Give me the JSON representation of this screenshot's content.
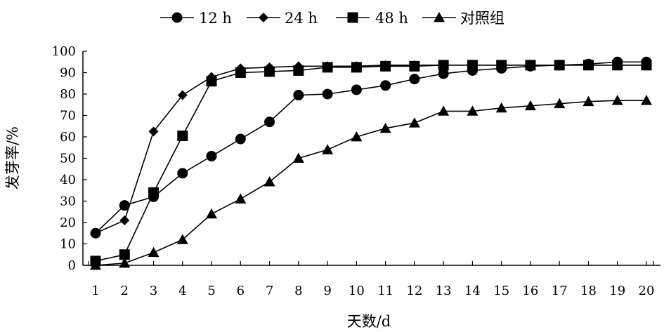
{
  "chart_data": {
    "type": "line",
    "xlabel": "天数/d",
    "ylabel": "发芽率/%",
    "x": [
      1,
      2,
      3,
      4,
      5,
      6,
      7,
      8,
      9,
      10,
      11,
      12,
      13,
      14,
      15,
      16,
      17,
      18,
      19,
      20
    ],
    "xlim": [
      1,
      20
    ],
    "ylim": [
      0,
      100
    ],
    "yticks": [
      0,
      10,
      20,
      30,
      40,
      50,
      60,
      70,
      80,
      90,
      100
    ],
    "grid": false,
    "legend_position": "top",
    "series": [
      {
        "name": "12 h",
        "marker": "circle",
        "values": [
          15,
          28,
          32,
          43,
          51,
          59,
          67,
          79.5,
          80,
          82,
          84,
          87,
          89.5,
          91,
          92,
          93,
          93.5,
          94,
          95,
          95
        ]
      },
      {
        "name": "24 h",
        "marker": "diamond",
        "values": [
          15,
          21,
          62.5,
          79.5,
          88,
          92,
          92.5,
          93,
          93,
          93,
          93.5,
          93.5,
          93.5,
          93.5,
          93.5,
          93.5,
          93.5,
          93.5,
          93.5,
          93.5
        ]
      },
      {
        "name": "48 h",
        "marker": "square",
        "values": [
          2,
          5,
          34,
          60.5,
          86,
          90,
          90.5,
          91,
          92.5,
          92.5,
          93,
          93,
          93.5,
          93.5,
          93.5,
          93.5,
          93.5,
          93.5,
          93.5,
          93.5
        ]
      },
      {
        "name": "对照组",
        "marker": "triangle",
        "values": [
          0,
          1,
          6,
          12,
          24,
          31,
          39,
          50,
          54,
          60,
          64,
          66.5,
          72,
          72,
          73.5,
          74.5,
          75.5,
          76.5,
          77,
          77
        ]
      }
    ]
  }
}
